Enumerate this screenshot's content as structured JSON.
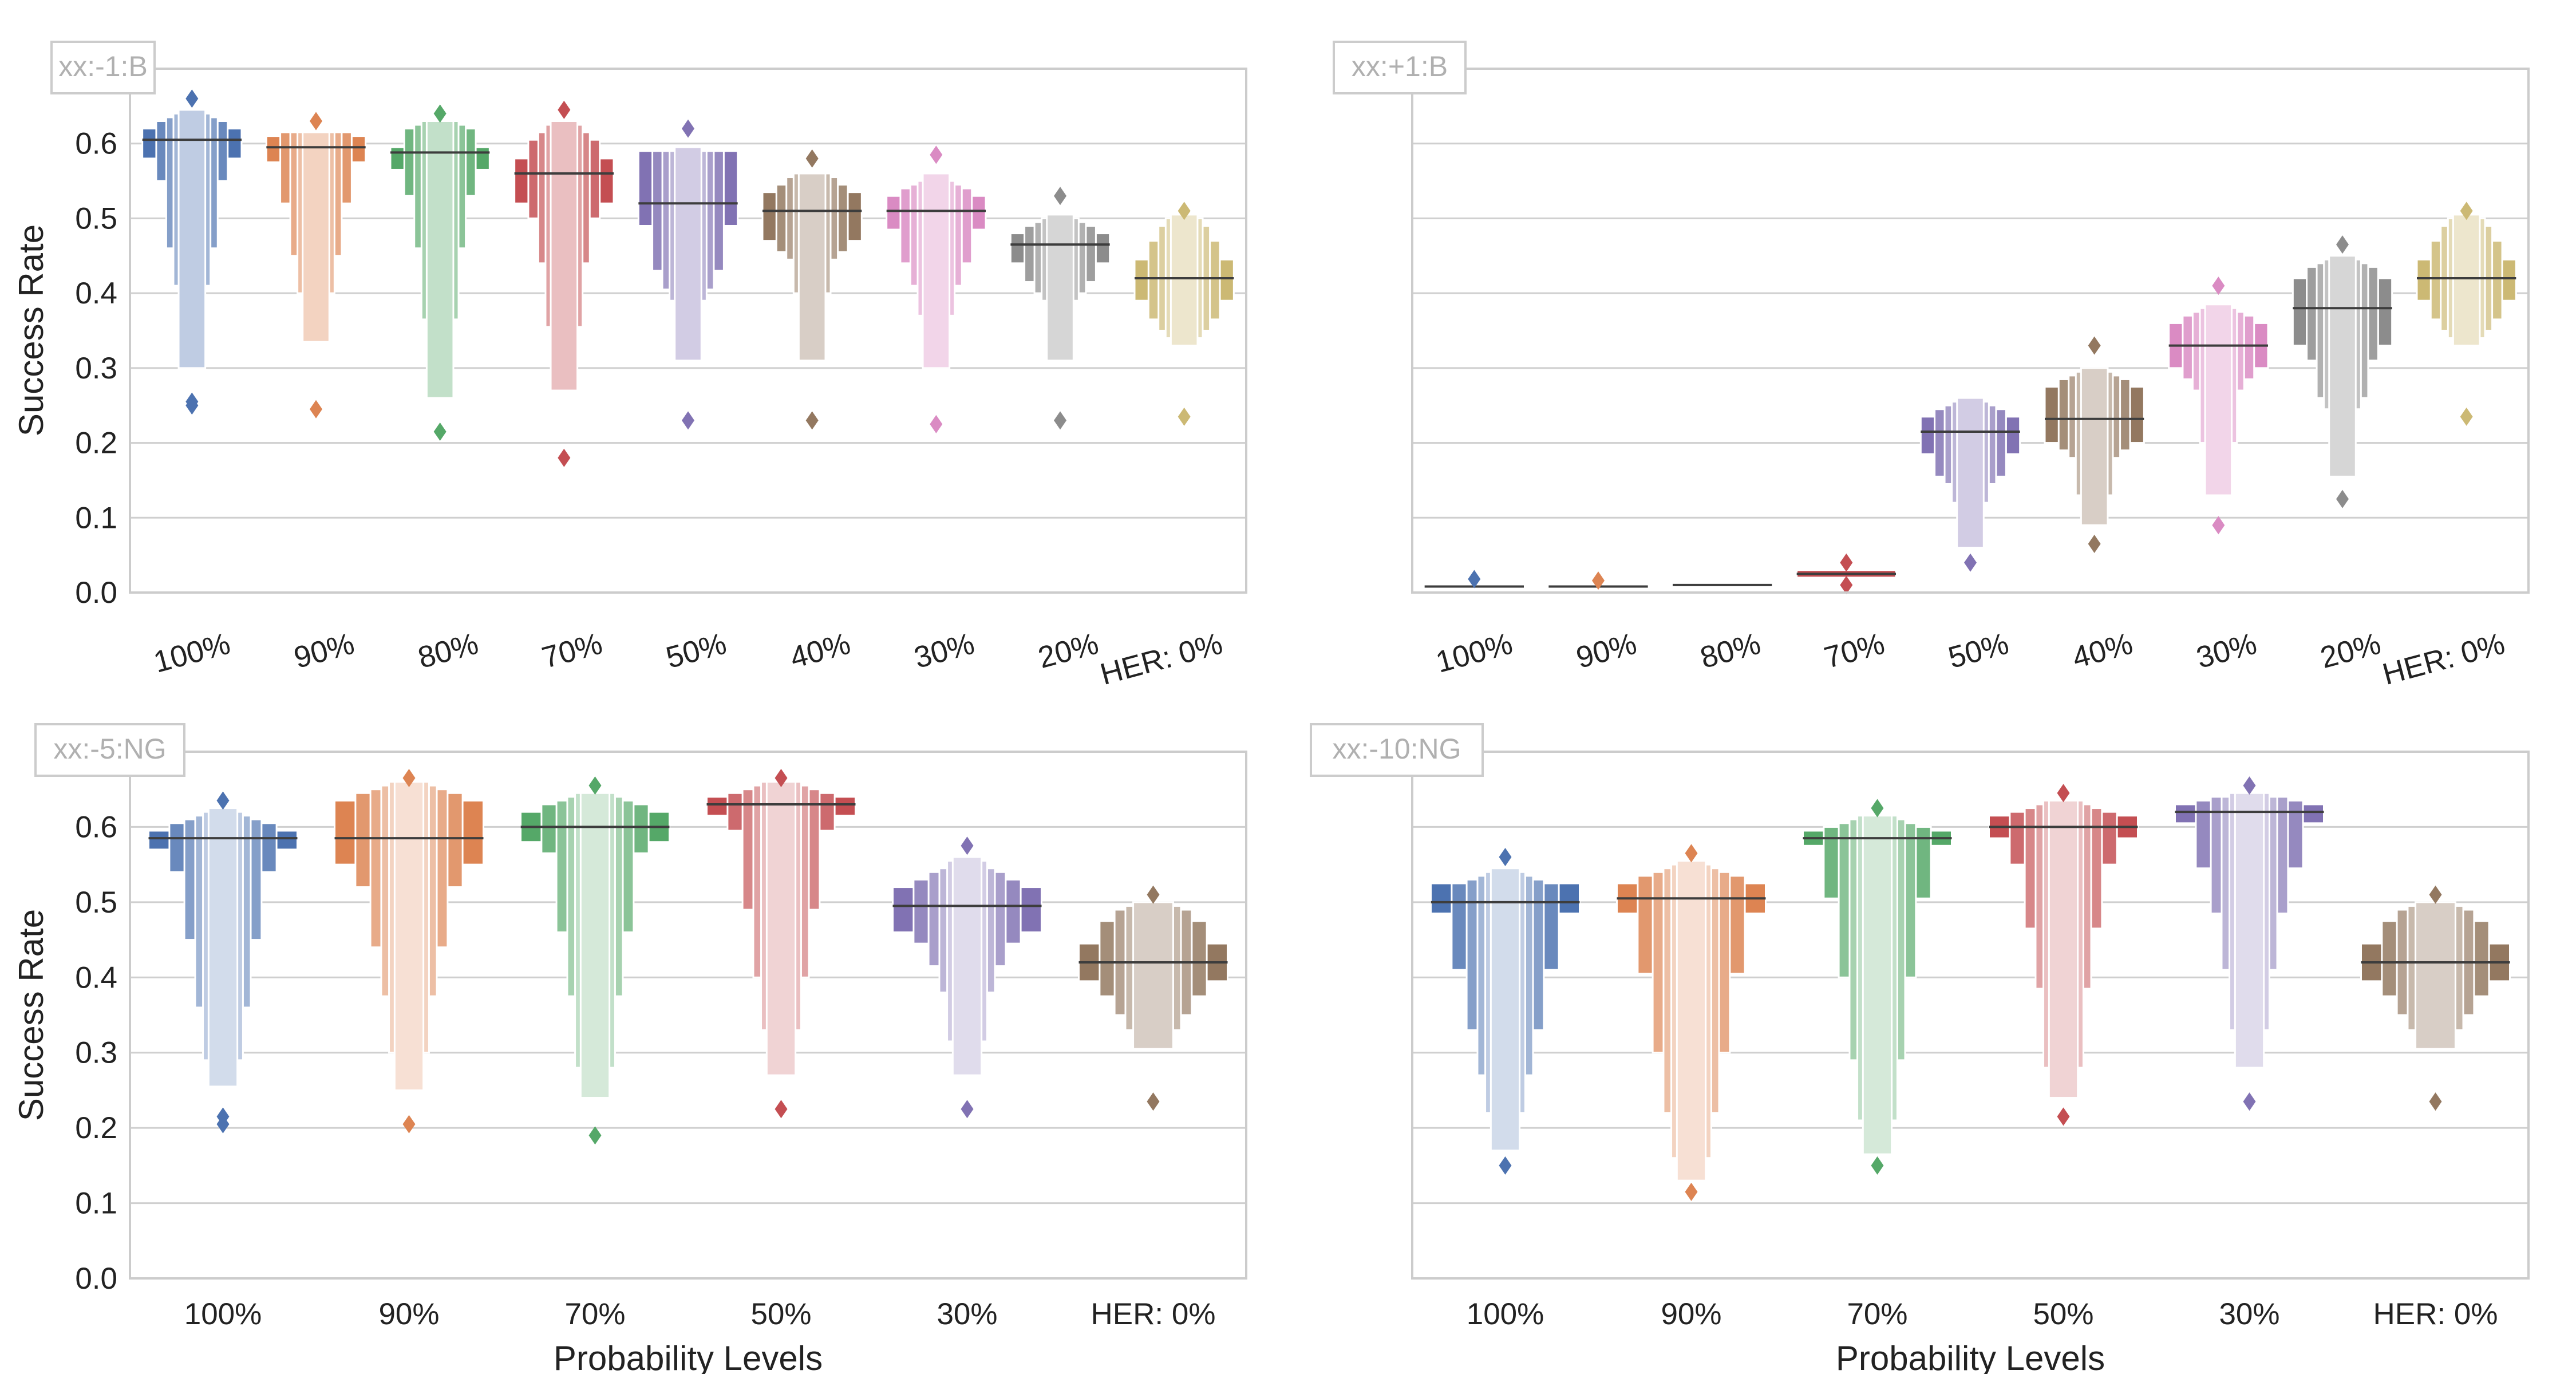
{
  "colors": {
    "blue": "#4c72b0",
    "orange": "#dd8452",
    "green": "#55a868",
    "red": "#c44e52",
    "purple": "#8172b3",
    "brown": "#937860",
    "pink": "#da8bc3",
    "gray": "#8c8c8c",
    "olive": "#ccb974"
  },
  "chart_data": [
    {
      "type": "boxen",
      "panel_label": "xx:-1:B",
      "ylabel": "Success Rate",
      "xlabel": "",
      "ylim": [
        0,
        0.7
      ],
      "yticks": [
        "0.0",
        "0.1",
        "0.2",
        "0.3",
        "0.4",
        "0.5",
        "0.6"
      ],
      "rotate_xticks": true,
      "categories": [
        "100%",
        "90%",
        "80%",
        "70%",
        "50%",
        "40%",
        "30%",
        "20%",
        "HER: 0%"
      ],
      "colors": [
        "#4c72b0",
        "#dd8452",
        "#55a868",
        "#c44e52",
        "#8172b3",
        "#937860",
        "#da8bc3",
        "#8c8c8c",
        "#ccb974"
      ],
      "series": [
        {
          "median": 0.605,
          "levels": [
            [
              0.58,
              0.62
            ],
            [
              0.55,
              0.63
            ],
            [
              0.46,
              0.635
            ],
            [
              0.41,
              0.64
            ],
            [
              0.3,
              0.645
            ]
          ],
          "outliers": [
            0.66,
            0.255,
            0.25
          ]
        },
        {
          "median": 0.595,
          "levels": [
            [
              0.575,
              0.61
            ],
            [
              0.52,
              0.615
            ],
            [
              0.45,
              0.615
            ],
            [
              0.4,
              0.615
            ],
            [
              0.335,
              0.615
            ]
          ],
          "outliers": [
            0.63,
            0.245
          ]
        },
        {
          "median": 0.588,
          "levels": [
            [
              0.565,
              0.595
            ],
            [
              0.53,
              0.62
            ],
            [
              0.46,
              0.625
            ],
            [
              0.365,
              0.63
            ],
            [
              0.26,
              0.63
            ]
          ],
          "outliers": [
            0.64,
            0.215
          ]
        },
        {
          "median": 0.56,
          "levels": [
            [
              0.52,
              0.58
            ],
            [
              0.5,
              0.605
            ],
            [
              0.44,
              0.615
            ],
            [
              0.355,
              0.625
            ],
            [
              0.27,
              0.63
            ]
          ],
          "outliers": [
            0.645,
            0.18
          ]
        },
        {
          "median": 0.52,
          "levels": [
            [
              0.49,
              0.59
            ],
            [
              0.43,
              0.59
            ],
            [
              0.405,
              0.59
            ],
            [
              0.39,
              0.59
            ],
            [
              0.31,
              0.595
            ]
          ],
          "outliers": [
            0.62,
            0.23
          ]
        },
        {
          "median": 0.51,
          "levels": [
            [
              0.47,
              0.535
            ],
            [
              0.455,
              0.545
            ],
            [
              0.445,
              0.555
            ],
            [
              0.4,
              0.56
            ],
            [
              0.31,
              0.56
            ]
          ],
          "outliers": [
            0.58,
            0.23
          ]
        },
        {
          "median": 0.51,
          "levels": [
            [
              0.485,
              0.53
            ],
            [
              0.44,
              0.54
            ],
            [
              0.41,
              0.545
            ],
            [
              0.37,
              0.55
            ],
            [
              0.3,
              0.56
            ]
          ],
          "outliers": [
            0.585,
            0.225
          ]
        },
        {
          "median": 0.465,
          "levels": [
            [
              0.44,
              0.48
            ],
            [
              0.415,
              0.49
            ],
            [
              0.4,
              0.495
            ],
            [
              0.39,
              0.5
            ],
            [
              0.31,
              0.505
            ]
          ],
          "outliers": [
            0.53,
            0.23
          ]
        },
        {
          "median": 0.42,
          "levels": [
            [
              0.39,
              0.445
            ],
            [
              0.365,
              0.47
            ],
            [
              0.35,
              0.49
            ],
            [
              0.34,
              0.5
            ],
            [
              0.33,
              0.505
            ]
          ],
          "outliers": [
            0.51,
            0.235
          ]
        }
      ]
    },
    {
      "type": "boxen",
      "panel_label": "xx:+1:B",
      "ylabel": "",
      "xlabel": "",
      "ylim": [
        0,
        0.7
      ],
      "yticks": [],
      "rotate_xticks": true,
      "categories": [
        "100%",
        "90%",
        "80%",
        "70%",
        "50%",
        "40%",
        "30%",
        "20%",
        "HER: 0%"
      ],
      "colors": [
        "#4c72b0",
        "#dd8452",
        "#55a868",
        "#c44e52",
        "#8172b3",
        "#937860",
        "#da8bc3",
        "#8c8c8c",
        "#ccb974"
      ],
      "series": [
        {
          "median": 0.008,
          "levels": [
            [
              0.006,
              0.01
            ]
          ],
          "outliers": [
            0.018
          ]
        },
        {
          "median": 0.008,
          "levels": [
            [
              0.006,
              0.01
            ]
          ],
          "outliers": [
            0.016
          ]
        },
        {
          "median": 0.01,
          "levels": [
            [
              0.008,
              0.012
            ]
          ],
          "outliers": []
        },
        {
          "median": 0.025,
          "levels": [
            [
              0.02,
              0.03
            ]
          ],
          "outliers": [
            0.04,
            0.01
          ]
        },
        {
          "median": 0.215,
          "levels": [
            [
              0.185,
              0.235
            ],
            [
              0.155,
              0.245
            ],
            [
              0.145,
              0.25
            ],
            [
              0.12,
              0.255
            ],
            [
              0.06,
              0.26
            ]
          ],
          "outliers": [
            0.04
          ]
        },
        {
          "median": 0.232,
          "levels": [
            [
              0.2,
              0.275
            ],
            [
              0.19,
              0.285
            ],
            [
              0.18,
              0.29
            ],
            [
              0.13,
              0.295
            ],
            [
              0.09,
              0.3
            ]
          ],
          "outliers": [
            0.33,
            0.065
          ]
        },
        {
          "median": 0.33,
          "levels": [
            [
              0.3,
              0.36
            ],
            [
              0.285,
              0.37
            ],
            [
              0.27,
              0.375
            ],
            [
              0.2,
              0.38
            ],
            [
              0.13,
              0.385
            ]
          ],
          "outliers": [
            0.41,
            0.09
          ]
        },
        {
          "median": 0.38,
          "levels": [
            [
              0.33,
              0.42
            ],
            [
              0.31,
              0.435
            ],
            [
              0.26,
              0.44
            ],
            [
              0.245,
              0.445
            ],
            [
              0.155,
              0.45
            ]
          ],
          "outliers": [
            0.465,
            0.125
          ]
        },
        {
          "median": 0.42,
          "levels": [
            [
              0.39,
              0.445
            ],
            [
              0.365,
              0.47
            ],
            [
              0.35,
              0.49
            ],
            [
              0.34,
              0.5
            ],
            [
              0.33,
              0.505
            ]
          ],
          "outliers": [
            0.51,
            0.235
          ]
        }
      ]
    },
    {
      "type": "boxen",
      "panel_label": "xx:-5:NG",
      "ylabel": "Success Rate",
      "xlabel": "Probability Levels",
      "ylim": [
        0,
        0.7
      ],
      "yticks": [
        "0.0",
        "0.1",
        "0.2",
        "0.3",
        "0.4",
        "0.5",
        "0.6"
      ],
      "rotate_xticks": false,
      "categories": [
        "100%",
        "90%",
        "70%",
        "50%",
        "30%",
        "HER: 0%"
      ],
      "colors": [
        "#4c72b0",
        "#dd8452",
        "#55a868",
        "#c44e52",
        "#8172b3",
        "#937860"
      ],
      "series": [
        {
          "median": 0.585,
          "levels": [
            [
              0.57,
              0.595
            ],
            [
              0.54,
              0.605
            ],
            [
              0.45,
              0.61
            ],
            [
              0.36,
              0.615
            ],
            [
              0.29,
              0.62
            ],
            [
              0.255,
              0.625
            ]
          ],
          "outliers": [
            0.635,
            0.215,
            0.205
          ]
        },
        {
          "median": 0.585,
          "levels": [
            [
              0.55,
              0.635
            ],
            [
              0.52,
              0.645
            ],
            [
              0.44,
              0.65
            ],
            [
              0.375,
              0.655
            ],
            [
              0.3,
              0.66
            ],
            [
              0.25,
              0.66
            ]
          ],
          "outliers": [
            0.665,
            0.205
          ]
        },
        {
          "median": 0.6,
          "levels": [
            [
              0.58,
              0.62
            ],
            [
              0.565,
              0.63
            ],
            [
              0.46,
              0.635
            ],
            [
              0.375,
              0.64
            ],
            [
              0.28,
              0.645
            ],
            [
              0.24,
              0.645
            ]
          ],
          "outliers": [
            0.655,
            0.19
          ]
        },
        {
          "median": 0.63,
          "levels": [
            [
              0.615,
              0.64
            ],
            [
              0.595,
              0.645
            ],
            [
              0.49,
              0.65
            ],
            [
              0.4,
              0.655
            ],
            [
              0.33,
              0.66
            ],
            [
              0.27,
              0.66
            ]
          ],
          "outliers": [
            0.665,
            0.225
          ]
        },
        {
          "median": 0.495,
          "levels": [
            [
              0.46,
              0.52
            ],
            [
              0.445,
              0.53
            ],
            [
              0.415,
              0.54
            ],
            [
              0.38,
              0.545
            ],
            [
              0.315,
              0.555
            ],
            [
              0.27,
              0.56
            ]
          ],
          "outliers": [
            0.575,
            0.225
          ]
        },
        {
          "median": 0.42,
          "levels": [
            [
              0.395,
              0.445
            ],
            [
              0.375,
              0.475
            ],
            [
              0.35,
              0.49
            ],
            [
              0.33,
              0.495
            ],
            [
              0.305,
              0.5
            ]
          ],
          "outliers": [
            0.51,
            0.235
          ]
        }
      ]
    },
    {
      "type": "boxen",
      "panel_label": "xx:-10:NG",
      "ylabel": "",
      "xlabel": "Probability Levels",
      "ylim": [
        0,
        0.7
      ],
      "yticks": [],
      "rotate_xticks": false,
      "categories": [
        "100%",
        "90%",
        "70%",
        "50%",
        "30%",
        "HER: 0%"
      ],
      "colors": [
        "#4c72b0",
        "#dd8452",
        "#55a868",
        "#c44e52",
        "#8172b3",
        "#937860"
      ],
      "series": [
        {
          "median": 0.5,
          "levels": [
            [
              0.485,
              0.525
            ],
            [
              0.41,
              0.525
            ],
            [
              0.33,
              0.53
            ],
            [
              0.27,
              0.535
            ],
            [
              0.22,
              0.54
            ],
            [
              0.17,
              0.545
            ]
          ],
          "outliers": [
            0.56,
            0.15
          ]
        },
        {
          "median": 0.505,
          "levels": [
            [
              0.485,
              0.525
            ],
            [
              0.405,
              0.535
            ],
            [
              0.3,
              0.54
            ],
            [
              0.22,
              0.545
            ],
            [
              0.16,
              0.55
            ],
            [
              0.13,
              0.555
            ]
          ],
          "outliers": [
            0.565,
            0.115
          ]
        },
        {
          "median": 0.585,
          "levels": [
            [
              0.575,
              0.595
            ],
            [
              0.505,
              0.6
            ],
            [
              0.4,
              0.605
            ],
            [
              0.29,
              0.61
            ],
            [
              0.21,
              0.615
            ],
            [
              0.165,
              0.615
            ]
          ],
          "outliers": [
            0.625,
            0.15
          ]
        },
        {
          "median": 0.6,
          "levels": [
            [
              0.585,
              0.615
            ],
            [
              0.55,
              0.62
            ],
            [
              0.465,
              0.625
            ],
            [
              0.385,
              0.63
            ],
            [
              0.28,
              0.635
            ],
            [
              0.24,
              0.635
            ]
          ],
          "outliers": [
            0.645,
            0.215
          ]
        },
        {
          "median": 0.62,
          "levels": [
            [
              0.605,
              0.63
            ],
            [
              0.545,
              0.635
            ],
            [
              0.485,
              0.64
            ],
            [
              0.41,
              0.64
            ],
            [
              0.33,
              0.645
            ],
            [
              0.28,
              0.645
            ]
          ],
          "outliers": [
            0.655,
            0.235
          ]
        },
        {
          "median": 0.42,
          "levels": [
            [
              0.395,
              0.445
            ],
            [
              0.375,
              0.475
            ],
            [
              0.35,
              0.49
            ],
            [
              0.33,
              0.495
            ],
            [
              0.305,
              0.5
            ]
          ],
          "outliers": [
            0.51,
            0.235
          ]
        }
      ]
    }
  ]
}
